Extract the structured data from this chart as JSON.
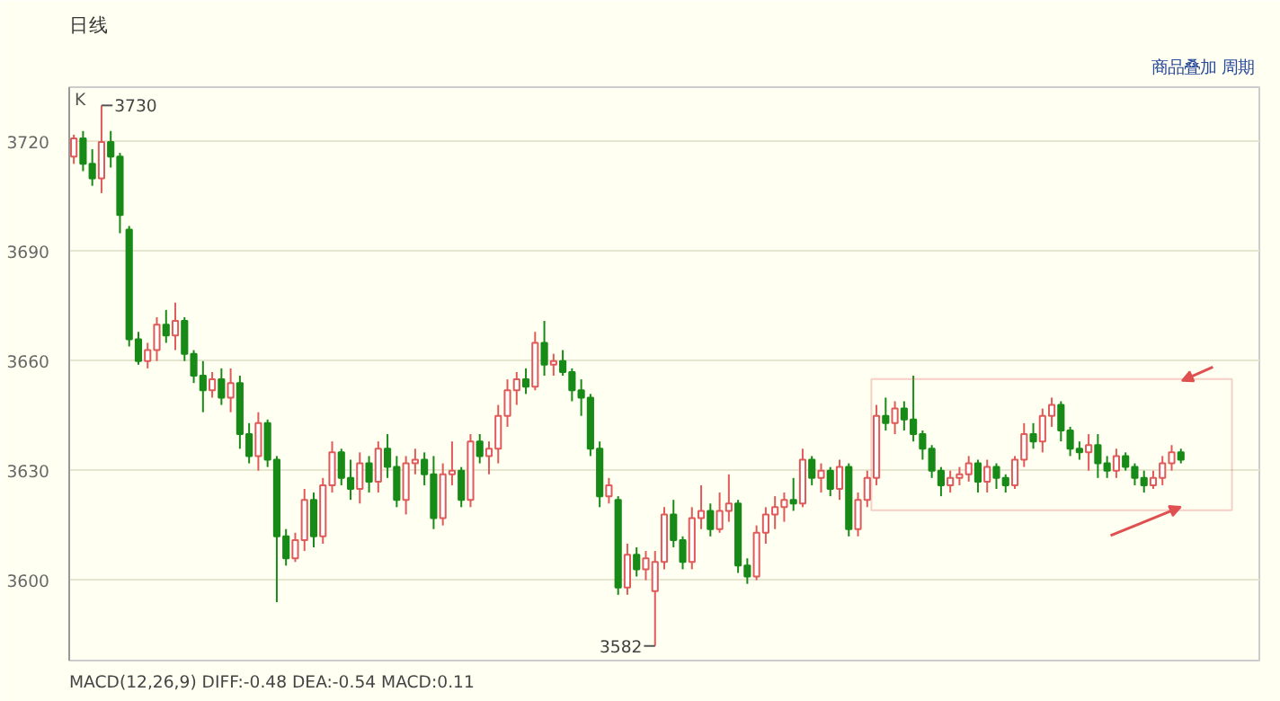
{
  "chart_data": {
    "type": "candlestick",
    "title": "日线",
    "categories": [
      null,
      null,
      null,
      null,
      null,
      null,
      null,
      null,
      null,
      null,
      null,
      null,
      null,
      null,
      null,
      null,
      null,
      null,
      null,
      null,
      null,
      null,
      null,
      null,
      null,
      null,
      null,
      null,
      null,
      null,
      null,
      null,
      null,
      null,
      null,
      null,
      null,
      null,
      null,
      null,
      null,
      null,
      null,
      null,
      null,
      null,
      null,
      null,
      null,
      null,
      null,
      null,
      null,
      null,
      null,
      null,
      null,
      null,
      null,
      null,
      null,
      null,
      null,
      null,
      null,
      null,
      null,
      null,
      null,
      null,
      null,
      null,
      null,
      null,
      null,
      null,
      null,
      null,
      null,
      null,
      null,
      null,
      null,
      null,
      null,
      null,
      null,
      null,
      null,
      null,
      null,
      null,
      null,
      null,
      null,
      null,
      null,
      null,
      null,
      null,
      null,
      null,
      null,
      null,
      null,
      null,
      null,
      null,
      null,
      null,
      null,
      null,
      null,
      null,
      null,
      null,
      null,
      null,
      null,
      null,
      null,
      null,
      null,
      null,
      null,
      null,
      null,
      null,
      null
    ],
    "ohlc": [
      [
        3716,
        3722,
        3714,
        3721
      ],
      [
        3721,
        3723,
        3712,
        3714
      ],
      [
        3714,
        3718,
        3708,
        3710
      ],
      [
        3710,
        3730,
        3706,
        3720
      ],
      [
        3720,
        3723,
        3713,
        3716
      ],
      [
        3716,
        3717,
        3695,
        3700
      ],
      [
        3696,
        3697,
        3664,
        3666
      ],
      [
        3666,
        3668,
        3659,
        3660
      ],
      [
        3660,
        3665,
        3658,
        3663
      ],
      [
        3663,
        3672,
        3660,
        3670
      ],
      [
        3670,
        3674,
        3665,
        3667
      ],
      [
        3667,
        3676,
        3663,
        3671
      ],
      [
        3671,
        3672,
        3660,
        3662
      ],
      [
        3662,
        3663,
        3654,
        3656
      ],
      [
        3656,
        3660,
        3646,
        3652
      ],
      [
        3652,
        3657,
        3650,
        3655
      ],
      [
        3655,
        3658,
        3648,
        3650
      ],
      [
        3650,
        3658,
        3646,
        3654
      ],
      [
        3654,
        3656,
        3636,
        3640
      ],
      [
        3640,
        3643,
        3632,
        3634
      ],
      [
        3634,
        3646,
        3630,
        3643
      ],
      [
        3643,
        3644,
        3631,
        3633
      ],
      [
        3633,
        3634,
        3594,
        3612
      ],
      [
        3612,
        3614,
        3604,
        3606
      ],
      [
        3606,
        3613,
        3605,
        3611
      ],
      [
        3611,
        3625,
        3608,
        3622
      ],
      [
        3622,
        3624,
        3609,
        3612
      ],
      [
        3612,
        3628,
        3610,
        3626
      ],
      [
        3626,
        3638,
        3624,
        3635
      ],
      [
        3635,
        3636,
        3626,
        3628
      ],
      [
        3628,
        3633,
        3622,
        3625
      ],
      [
        3625,
        3635,
        3621,
        3632
      ],
      [
        3632,
        3634,
        3624,
        3627
      ],
      [
        3627,
        3638,
        3624,
        3636
      ],
      [
        3636,
        3640,
        3628,
        3631
      ],
      [
        3631,
        3634,
        3620,
        3622
      ],
      [
        3622,
        3634,
        3618,
        3632
      ],
      [
        3632,
        3636,
        3629,
        3633
      ],
      [
        3633,
        3635,
        3626,
        3629
      ],
      [
        3629,
        3634,
        3614,
        3617
      ],
      [
        3617,
        3632,
        3615,
        3629
      ],
      [
        3629,
        3638,
        3626,
        3630
      ],
      [
        3630,
        3631,
        3620,
        3622
      ],
      [
        3622,
        3640,
        3620,
        3638
      ],
      [
        3638,
        3640,
        3632,
        3634
      ],
      [
        3634,
        3638,
        3629,
        3636
      ],
      [
        3636,
        3648,
        3632,
        3645
      ],
      [
        3645,
        3655,
        3642,
        3652
      ],
      [
        3652,
        3657,
        3648,
        3655
      ],
      [
        3655,
        3658,
        3651,
        3653
      ],
      [
        3653,
        3668,
        3652,
        3665
      ],
      [
        3665,
        3671,
        3656,
        3659
      ],
      [
        3659,
        3662,
        3656,
        3660
      ],
      [
        3660,
        3663,
        3656,
        3657
      ],
      [
        3657,
        3658,
        3649,
        3652
      ],
      [
        3652,
        3655,
        3645,
        3650
      ],
      [
        3650,
        3651,
        3634,
        3636
      ],
      [
        3636,
        3638,
        3620,
        3623
      ],
      [
        3623,
        3628,
        3621,
        3626
      ],
      [
        3622,
        3623,
        3596,
        3598
      ],
      [
        3598,
        3610,
        3596,
        3607
      ],
      [
        3607,
        3609,
        3601,
        3603
      ],
      [
        3603,
        3608,
        3600,
        3606
      ],
      [
        3597,
        3608,
        3582,
        3605
      ],
      [
        3605,
        3620,
        3603,
        3618
      ],
      [
        3618,
        3622,
        3609,
        3611
      ],
      [
        3611,
        3612,
        3603,
        3605
      ],
      [
        3605,
        3620,
        3603,
        3617
      ],
      [
        3617,
        3626,
        3614,
        3619
      ],
      [
        3619,
        3621,
        3612,
        3614
      ],
      [
        3614,
        3624,
        3613,
        3619
      ],
      [
        3619,
        3629,
        3616,
        3621
      ],
      [
        3621,
        3622,
        3602,
        3604
      ],
      [
        3604,
        3606,
        3599,
        3601
      ],
      [
        3601,
        3615,
        3600,
        3613
      ],
      [
        3613,
        3620,
        3610,
        3618
      ],
      [
        3618,
        3623,
        3614,
        3620
      ],
      [
        3620,
        3624,
        3616,
        3622
      ],
      [
        3622,
        3628,
        3619,
        3621
      ],
      [
        3621,
        3636,
        3620,
        3633
      ],
      [
        3633,
        3634,
        3626,
        3628
      ],
      [
        3628,
        3632,
        3624,
        3630
      ],
      [
        3630,
        3631,
        3623,
        3625
      ],
      [
        3625,
        3633,
        3622,
        3631
      ],
      [
        3631,
        3632,
        3612,
        3614
      ],
      [
        3614,
        3624,
        3612,
        3622
      ],
      [
        3622,
        3630,
        3620,
        3628
      ],
      [
        3628,
        3648,
        3626,
        3645
      ],
      [
        3645,
        3650,
        3641,
        3643
      ],
      [
        3643,
        3649,
        3640,
        3647
      ],
      [
        3647,
        3649,
        3641,
        3644
      ],
      [
        3644,
        3656,
        3638,
        3640
      ],
      [
        3640,
        3641,
        3633,
        3636
      ],
      [
        3636,
        3637,
        3628,
        3630
      ],
      [
        3630,
        3631,
        3623,
        3626
      ],
      [
        3626,
        3630,
        3624,
        3628
      ],
      [
        3628,
        3631,
        3626,
        3629
      ],
      [
        3629,
        3634,
        3627,
        3632
      ],
      [
        3632,
        3633,
        3624,
        3627
      ],
      [
        3627,
        3633,
        3624,
        3631
      ],
      [
        3631,
        3632,
        3625,
        3628
      ],
      [
        3628,
        3629,
        3624,
        3626
      ],
      [
        3626,
        3634,
        3625,
        3633
      ],
      [
        3633,
        3643,
        3631,
        3640
      ],
      [
        3640,
        3643,
        3636,
        3638
      ],
      [
        3638,
        3647,
        3635,
        3645
      ],
      [
        3645,
        3650,
        3642,
        3648
      ],
      [
        3648,
        3649,
        3638,
        3641
      ],
      [
        3641,
        3642,
        3634,
        3636
      ],
      [
        3636,
        3638,
        3633,
        3635
      ],
      [
        3635,
        3640,
        3630,
        3637
      ],
      [
        3637,
        3640,
        3628,
        3632
      ],
      [
        3632,
        3634,
        3628,
        3630
      ],
      [
        3630,
        3636,
        3628,
        3634
      ],
      [
        3634,
        3635,
        3630,
        3631
      ],
      [
        3631,
        3632,
        3626,
        3628
      ],
      [
        3628,
        3630,
        3624,
        3626
      ],
      [
        3626,
        3630,
        3625,
        3628
      ],
      [
        3628,
        3634,
        3626,
        3632
      ],
      [
        3632,
        3637,
        3630,
        3635
      ],
      [
        3635,
        3636,
        3632,
        3633
      ],
      null,
      null,
      null,
      null,
      null,
      null,
      null,
      null
    ],
    "ylim": [
      3578,
      3735
    ],
    "yticks": [
      3600,
      3630,
      3660,
      3690,
      3720
    ],
    "grid": "y",
    "annotations": [
      "K",
      "3730",
      "3582",
      "商品叠加  周期",
      "MACD(12,26,9) DIFF:-0.48 DEA:-0.54 MACD:0.11"
    ]
  }
}
